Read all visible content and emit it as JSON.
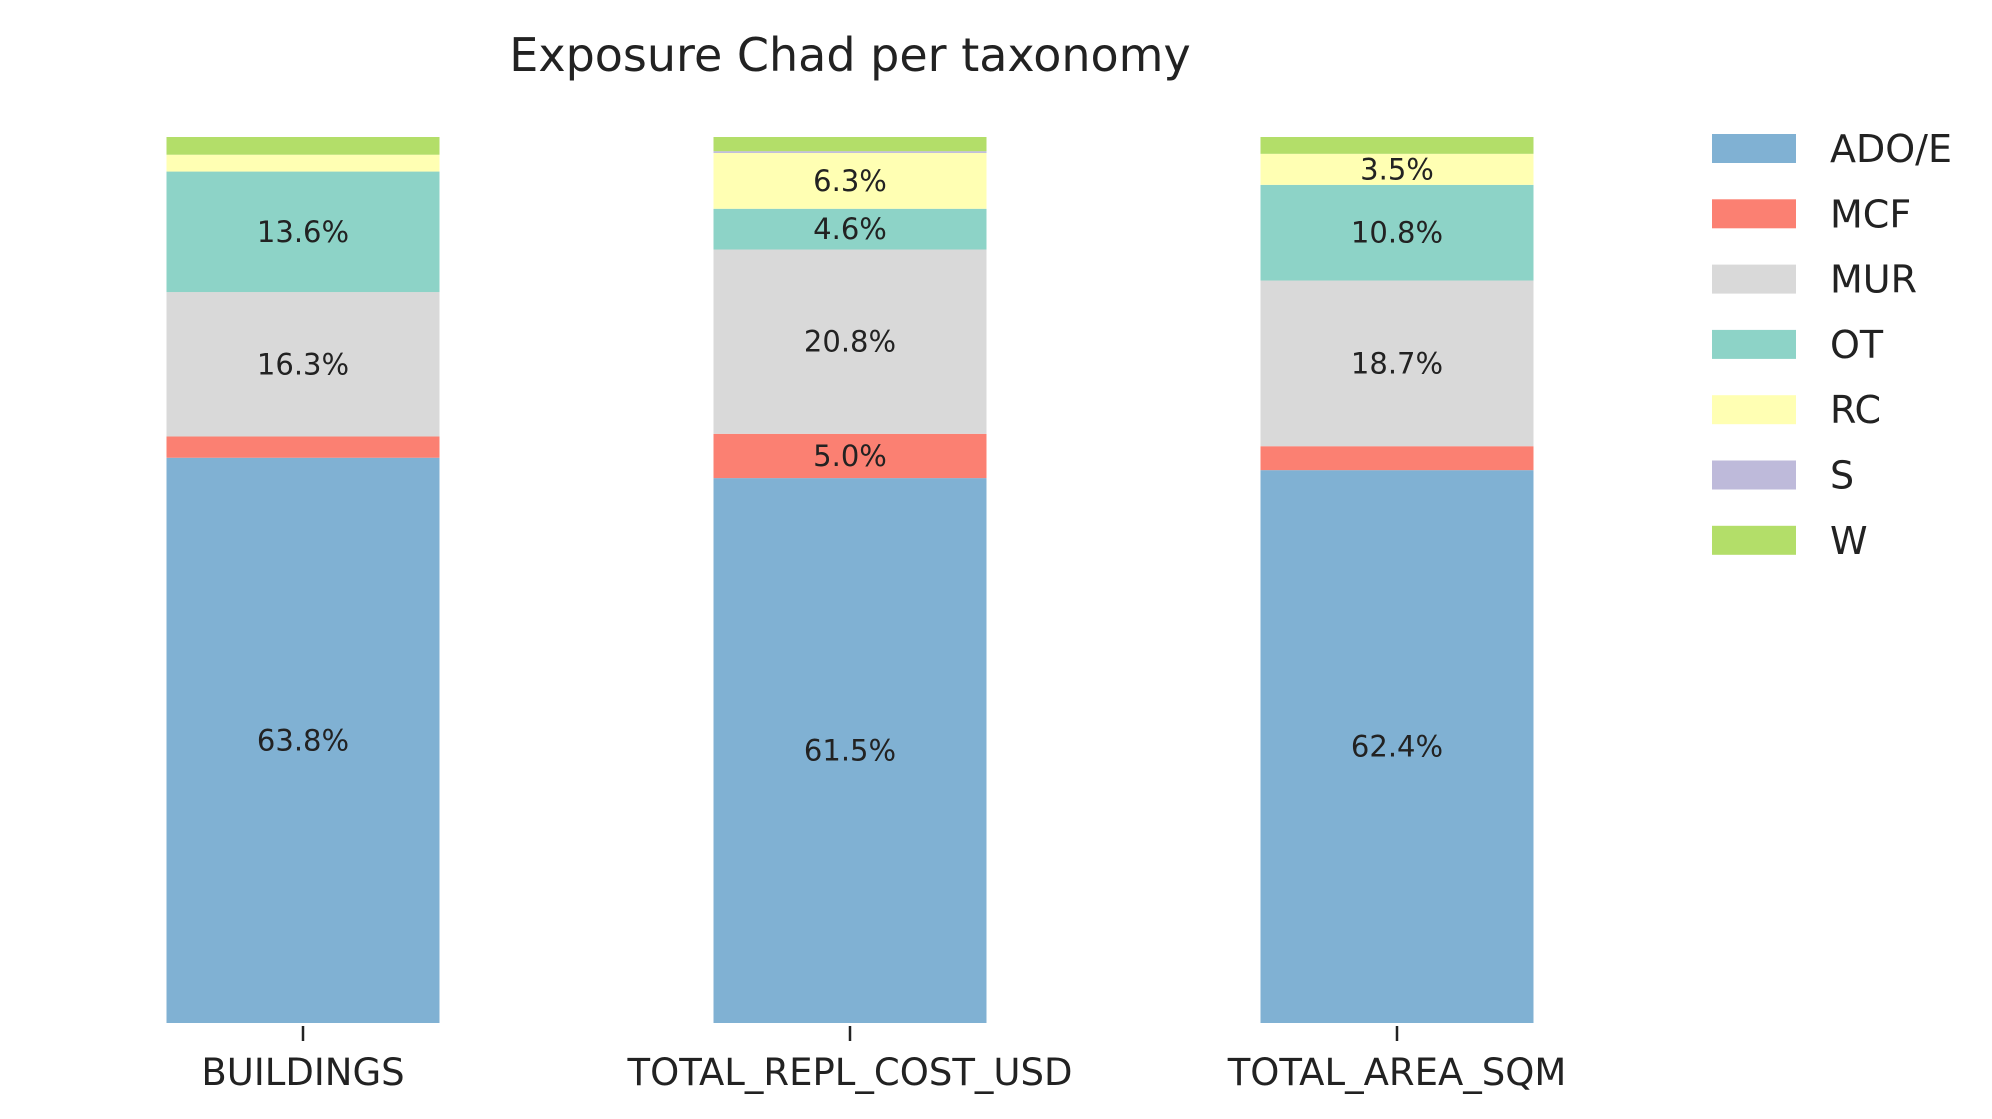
{
  "chart_data": {
    "type": "bar",
    "stacked": true,
    "percent_stacked": true,
    "title": "Exposure Chad per taxonomy",
    "xlabel": "",
    "ylabel": "",
    "ylim": [
      0,
      100
    ],
    "grid": false,
    "legend_position": "top-right",
    "categories": [
      "BUILDINGS",
      "TOTAL_REPL_COST_USD",
      "TOTAL_AREA_SQM"
    ],
    "series": [
      {
        "name": "ADO/E",
        "color": "#80b1d3",
        "values": [
          63.8,
          61.5,
          62.4
        ],
        "labels": [
          "63.8%",
          "61.5%",
          "62.4%"
        ]
      },
      {
        "name": "MCF",
        "color": "#fb8072",
        "values": [
          2.4,
          5.0,
          2.7
        ],
        "labels": [
          "",
          "5.0%",
          ""
        ]
      },
      {
        "name": "MUR",
        "color": "#d9d9d9",
        "values": [
          16.3,
          20.8,
          18.7
        ],
        "labels": [
          "16.3%",
          "20.8%",
          "18.7%"
        ]
      },
      {
        "name": "OT",
        "color": "#8dd3c7",
        "values": [
          13.6,
          4.6,
          10.8
        ],
        "labels": [
          "13.6%",
          "4.6%",
          "10.8%"
        ]
      },
      {
        "name": "RC",
        "color": "#ffffb3",
        "values": [
          1.9,
          6.3,
          3.5
        ],
        "labels": [
          "",
          "6.3%",
          "3.5%"
        ]
      },
      {
        "name": "S",
        "color": "#bebada",
        "values": [
          0.0,
          0.2,
          0.0
        ],
        "labels": [
          "",
          "",
          ""
        ]
      },
      {
        "name": "W",
        "color": "#b3de69",
        "values": [
          2.0,
          1.6,
          1.9
        ],
        "labels": [
          "",
          "",
          ""
        ]
      }
    ]
  }
}
